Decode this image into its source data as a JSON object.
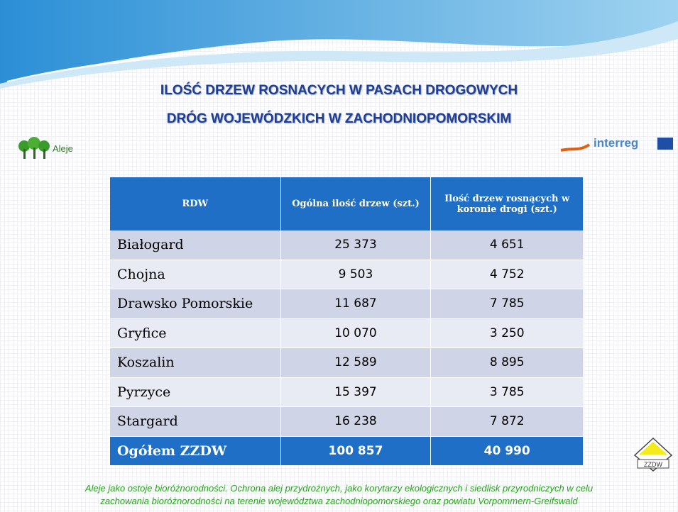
{
  "header": {
    "title_line1": "ILOŚĆ DRZEW ROSNACYCH W PASACH DROGOWYCH",
    "title_line2": "DRÓG WOJEWÓDZKICH W ZACHODNIOPOMORSKIM"
  },
  "logos": {
    "left": "Aleje",
    "right": "interreg",
    "bottom": "ZZDW"
  },
  "table": {
    "columns": [
      "RDW",
      "Ogólna ilość drzew (szt.)",
      "Ilość drzew rosnących w koronie drogi (szt.)"
    ],
    "rows": [
      [
        "Białogard",
        "25 373",
        "4 651"
      ],
      [
        "Chojna",
        "9 503",
        "4 752"
      ],
      [
        "Drawsko Pomorskie",
        "11 687",
        "7 785"
      ],
      [
        "Gryfice",
        "10 070",
        "3 250"
      ],
      [
        "Koszalin",
        "12 589",
        "8 895"
      ],
      [
        "Pyrzyce",
        "15 397",
        "3 785"
      ],
      [
        "Stargard",
        "16 238",
        "7 872"
      ]
    ],
    "total": [
      "Ogółem ZZDW",
      "100 857",
      "40 990"
    ]
  },
  "footer": {
    "line1": "Aleje jako ostoje bioróżnorodności. Ochrona alej przydrożnych, jako korytarzy ekologicznych i siedlisk przyrodniczych w celu",
    "line2": "zachowania bioróżnorodności na terenie województwa zachodniopomorskiego oraz powiatu Vorpommern-Greifswald"
  }
}
